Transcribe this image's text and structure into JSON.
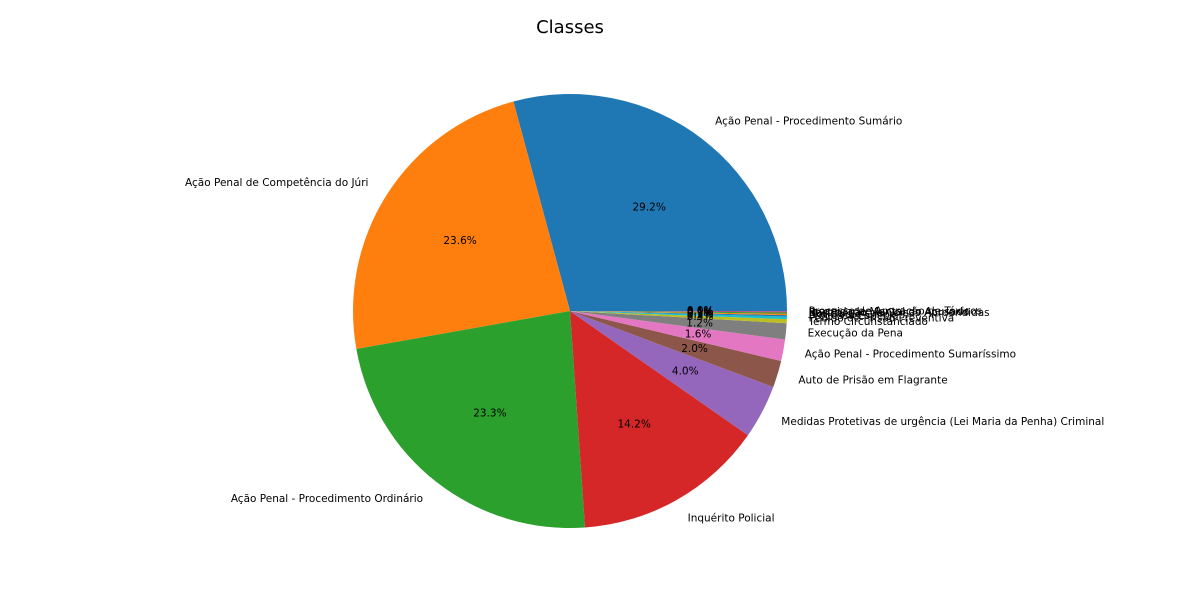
{
  "chart_data": {
    "type": "pie",
    "title": "Classes",
    "start_angle_deg": 0,
    "direction": "counterclockwise",
    "slices": [
      {
        "label": "Ação Penal - Procedimento Sumário",
        "pct": 29.2,
        "pct_label": "29.2%",
        "color": "#1f77b4"
      },
      {
        "label": "Ação Penal de Competência do Júri",
        "pct": 23.6,
        "pct_label": "23.6%",
        "color": "#ff7f0e"
      },
      {
        "label": "Ação Penal - Procedimento Ordinário",
        "pct": 23.3,
        "pct_label": "23.3%",
        "color": "#2ca02c"
      },
      {
        "label": "Inquérito Policial",
        "pct": 14.2,
        "pct_label": "14.2%",
        "color": "#d62728"
      },
      {
        "label": "Medidas Protetivas de urgência (Lei Maria da Penha) Criminal",
        "pct": 4.0,
        "pct_label": "4.0%",
        "color": "#9467bd"
      },
      {
        "label": "Auto de Prisão em Flagrante",
        "pct": 2.0,
        "pct_label": "2.0%",
        "color": "#8c564b"
      },
      {
        "label": "Ação Penal - Procedimento Sumaríssimo",
        "pct": 1.6,
        "pct_label": "1.6%",
        "color": "#e377c2"
      },
      {
        "label": "Execução da Pena",
        "pct": 1.2,
        "pct_label": "1.2%",
        "color": "#7f7f7f"
      },
      {
        "label": "Termo Circunstanciado",
        "pct": 0.3,
        "pct_label": "0.3%",
        "color": "#bcbd22"
      },
      {
        "label": "Pedido de Prisão Preventiva",
        "pct": 0.2,
        "pct_label": "0.2%",
        "color": "#17becf"
      },
      {
        "label": "Processo Especial",
        "pct": 0.1,
        "pct_label": "0.1%",
        "color": "#1f77b4"
      },
      {
        "label": "Notícia de Crime",
        "pct": 0.1,
        "pct_label": "0.1%",
        "color": "#ff7f0e"
      },
      {
        "label": "Restituição de Coisas Apreendidas",
        "pct": 0.1,
        "pct_label": "0.1%",
        "color": "#2ca02c"
      },
      {
        "label": "Insanidade Mental do Acusado",
        "pct": 0.05,
        "pct_label": "0.0%",
        "color": "#d62728"
      },
      {
        "label": "Processo de Apuração de Tóxicos",
        "pct": 0.05,
        "pct_label": "0.0%",
        "color": "#9467bd"
      }
    ]
  }
}
